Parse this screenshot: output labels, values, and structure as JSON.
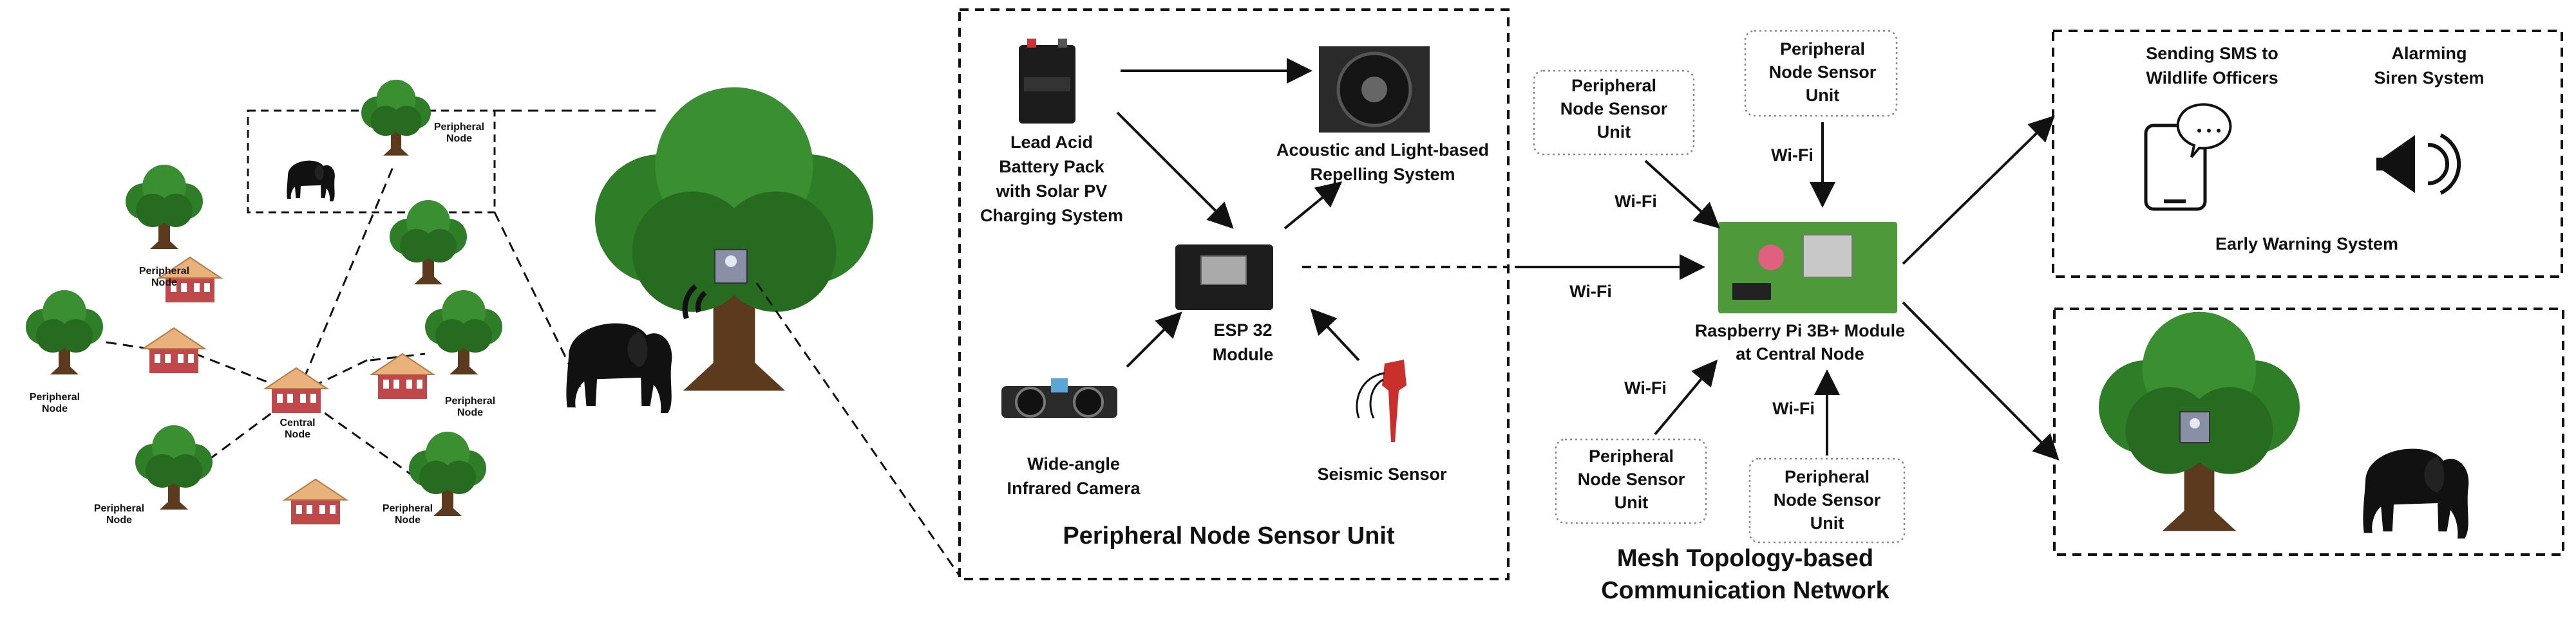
{
  "scene": {
    "peripheral_node_label": "Peripheral\nNode",
    "central_node_label": "Central\nNode"
  },
  "sensor_unit": {
    "battery_label": "Lead Acid\nBattery Pack\nwith Solar PV\nCharging System",
    "repeller_label": "Acoustic and Light-based\nRepelling System",
    "esp_label": "ESP 32\nModule",
    "camera_label": "Wide-angle\nInfrared Camera",
    "seismic_label": "Seismic Sensor",
    "title": "Peripheral Node Sensor Unit"
  },
  "network": {
    "psu_label": "Peripheral\nNode Sensor\nUnit",
    "wifi_label": "Wi-Fi",
    "pi_label": "Raspberry Pi 3B+ Module\nat Central Node",
    "title": "Mesh Topology-based\nCommunication Network"
  },
  "warning": {
    "sms_label": "Sending SMS to\nWildlife Officers",
    "siren_label": "Alarming\nSiren System",
    "title": "Early Warning System"
  },
  "colors": {
    "tree_canopy": "#2e7d27",
    "tree_trunk": "#5b3a1e",
    "house_wall": "#c0484a",
    "house_roof": "#e8b27a",
    "pcb": "#4e9a3a",
    "speaker": "#2a2a2a"
  }
}
